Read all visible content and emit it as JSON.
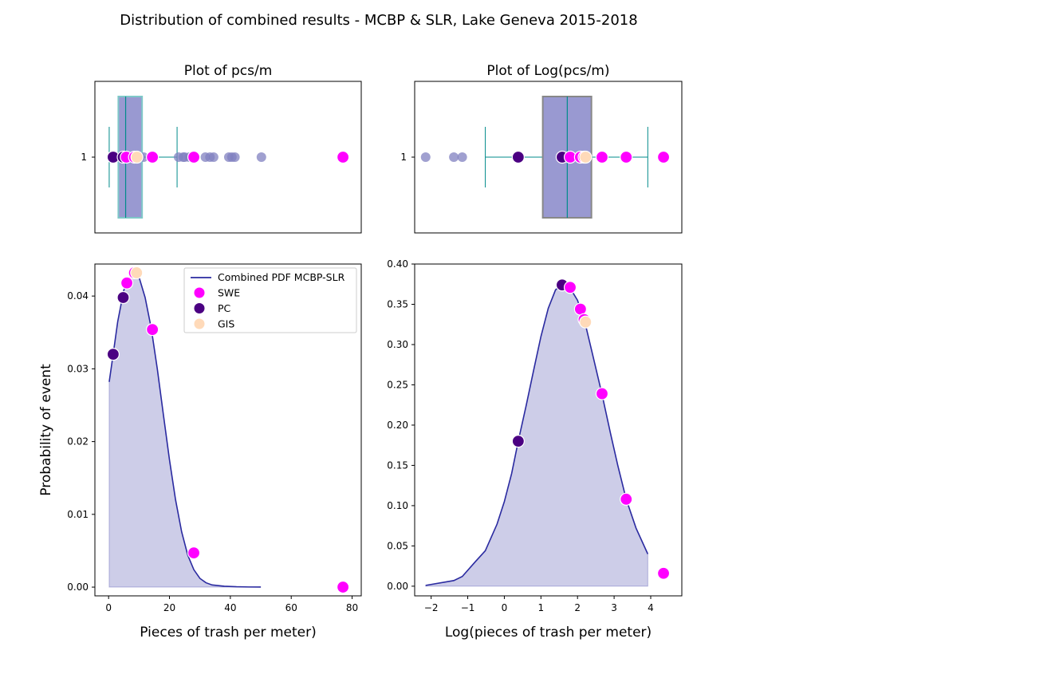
{
  "figure": {
    "suptitle": "Distribution of combined results - MCBP & SLR, Lake Geneva 2015-2018",
    "colors": {
      "SWE": "#ff00ff",
      "PC": "#4b0082",
      "GIS": "#ffdab9",
      "pdf_line": "#2a2aa0",
      "pdf_fill": "#7b7bc2",
      "box_fill": "#9999d1",
      "whisker": "#008b8b",
      "raw_points": "#8080c0"
    }
  },
  "chart_data": [
    {
      "id": "box-linear",
      "type": "box",
      "title": "Plot of pcs/m",
      "category_label": "1",
      "box": {
        "q1": 3.2,
        "median": 5.6,
        "q3": 11.0,
        "whisker_low": 0.2,
        "whisker_high": 22.5
      },
      "xlim": [
        -4.5,
        83
      ],
      "raw_points": [
        1.2,
        2.3,
        3.1,
        4.2,
        5.1,
        6.3,
        7.2,
        8.1,
        9.2,
        10.3,
        11.5,
        14.4,
        23.0,
        24.5,
        25.0,
        26.5,
        28.0,
        31.8,
        33.3,
        34.5,
        39.5,
        40.5,
        41.5,
        50.2,
        77.0
      ],
      "highlight_points": [
        {
          "group": "PC",
          "x": 1.5
        },
        {
          "group": "PC",
          "x": 4.8
        },
        {
          "group": "SWE",
          "x": 5.8
        },
        {
          "group": "SWE",
          "x": 8.5
        },
        {
          "group": "GIS",
          "x": 9.3
        },
        {
          "group": "SWE",
          "x": 14.4
        },
        {
          "group": "SWE",
          "x": 28.0
        },
        {
          "group": "SWE",
          "x": 77.0
        }
      ]
    },
    {
      "id": "box-log",
      "type": "box",
      "title": "Plot of Log(pcs/m)",
      "category_label": "1",
      "box": {
        "q1": 1.05,
        "median": 1.72,
        "q3": 2.38,
        "whisker_low": -0.52,
        "whisker_high": 3.92
      },
      "xlim": [
        -2.45,
        4.85
      ],
      "raw_points": [
        -2.15,
        -1.38,
        -1.15,
        0.38,
        1.58,
        1.8,
        2.1,
        2.2,
        2.65,
        3.33,
        4.35
      ],
      "highlight_points": [
        {
          "group": "PC",
          "x": 0.38
        },
        {
          "group": "PC",
          "x": 1.58
        },
        {
          "group": "SWE",
          "x": 1.8
        },
        {
          "group": "SWE",
          "x": 2.08
        },
        {
          "group": "SWE",
          "x": 2.18
        },
        {
          "group": "GIS",
          "x": 2.22
        },
        {
          "group": "SWE",
          "x": 2.67
        },
        {
          "group": "SWE",
          "x": 3.33
        },
        {
          "group": "SWE",
          "x": 4.35
        }
      ]
    },
    {
      "id": "pdf-linear",
      "type": "area",
      "xlabel": "Pieces of trash per meter)",
      "ylabel": "Probability of event",
      "xlim": [
        -4.5,
        83
      ],
      "ylim": [
        -0.0012,
        0.0444
      ],
      "xticks": [
        0,
        20,
        40,
        60,
        80
      ],
      "yticks": [
        0.0,
        0.01,
        0.02,
        0.03,
        0.04
      ],
      "ytick_labels": [
        "0.00",
        "0.01",
        "0.02",
        "0.03",
        "0.04"
      ],
      "legend": {
        "position": "upper right",
        "line_label": "Combined PDF MCBP-SLR",
        "entries": [
          "SWE",
          "PC",
          "GIS"
        ]
      },
      "curve": {
        "x": [
          0.2,
          1.5,
          3,
          5,
          6,
          8,
          9,
          10,
          12,
          14,
          16,
          18,
          20,
          22,
          24,
          26,
          28,
          30,
          32,
          34,
          38,
          42,
          46,
          50
        ],
        "y": [
          0.0282,
          0.032,
          0.0365,
          0.0408,
          0.0419,
          0.0432,
          0.0433,
          0.0426,
          0.0398,
          0.0356,
          0.03,
          0.0237,
          0.0175,
          0.012,
          0.0076,
          0.0044,
          0.0024,
          0.0012,
          0.0006,
          0.0003,
          0.00012,
          5e-05,
          2e-05,
          1e-05
        ]
      },
      "points": [
        {
          "group": "PC",
          "x": 1.5,
          "y": 0.032
        },
        {
          "group": "PC",
          "x": 4.8,
          "y": 0.0398
        },
        {
          "group": "SWE",
          "x": 6.0,
          "y": 0.0418
        },
        {
          "group": "SWE",
          "x": 8.5,
          "y": 0.0432
        },
        {
          "group": "GIS",
          "x": 9.2,
          "y": 0.0432
        },
        {
          "group": "SWE",
          "x": 14.4,
          "y": 0.0354
        },
        {
          "group": "SWE",
          "x": 28.0,
          "y": 0.0047
        },
        {
          "group": "SWE",
          "x": 77.0,
          "y": 0.0
        }
      ]
    },
    {
      "id": "pdf-log",
      "type": "area",
      "xlabel": "Log(pieces of trash per meter)",
      "ylabel": "",
      "xlim": [
        -2.45,
        4.85
      ],
      "ylim": [
        -0.012,
        0.4
      ],
      "xticks": [
        -2,
        -1,
        0,
        1,
        2,
        3,
        4
      ],
      "yticks": [
        0.0,
        0.05,
        0.1,
        0.15,
        0.2,
        0.25,
        0.3,
        0.35,
        0.4
      ],
      "ytick_labels": [
        "0.00",
        "0.05",
        "0.10",
        "0.15",
        "0.20",
        "0.25",
        "0.30",
        "0.35",
        "0.40"
      ],
      "curve": {
        "x": [
          -2.15,
          -1.38,
          -1.15,
          -0.8,
          -0.52,
          -0.2,
          0.0,
          0.2,
          0.38,
          0.6,
          0.8,
          1.0,
          1.2,
          1.4,
          1.58,
          1.7,
          1.8,
          2.0,
          2.2,
          2.4,
          2.67,
          2.9,
          3.1,
          3.33,
          3.6,
          3.92
        ],
        "y": [
          0.001,
          0.007,
          0.012,
          0.03,
          0.044,
          0.077,
          0.105,
          0.14,
          0.18,
          0.225,
          0.268,
          0.31,
          0.345,
          0.368,
          0.374,
          0.372,
          0.37,
          0.355,
          0.328,
          0.29,
          0.238,
          0.19,
          0.15,
          0.108,
          0.072,
          0.04
        ]
      },
      "points": [
        {
          "group": "PC",
          "x": 0.38,
          "y": 0.18
        },
        {
          "group": "PC",
          "x": 1.58,
          "y": 0.374
        },
        {
          "group": "SWE",
          "x": 1.8,
          "y": 0.371
        },
        {
          "group": "SWE",
          "x": 2.08,
          "y": 0.344
        },
        {
          "group": "SWE",
          "x": 2.18,
          "y": 0.331
        },
        {
          "group": "GIS",
          "x": 2.22,
          "y": 0.328
        },
        {
          "group": "SWE",
          "x": 2.67,
          "y": 0.239
        },
        {
          "group": "SWE",
          "x": 3.33,
          "y": 0.108
        },
        {
          "group": "SWE",
          "x": 4.35,
          "y": 0.016
        }
      ]
    }
  ]
}
